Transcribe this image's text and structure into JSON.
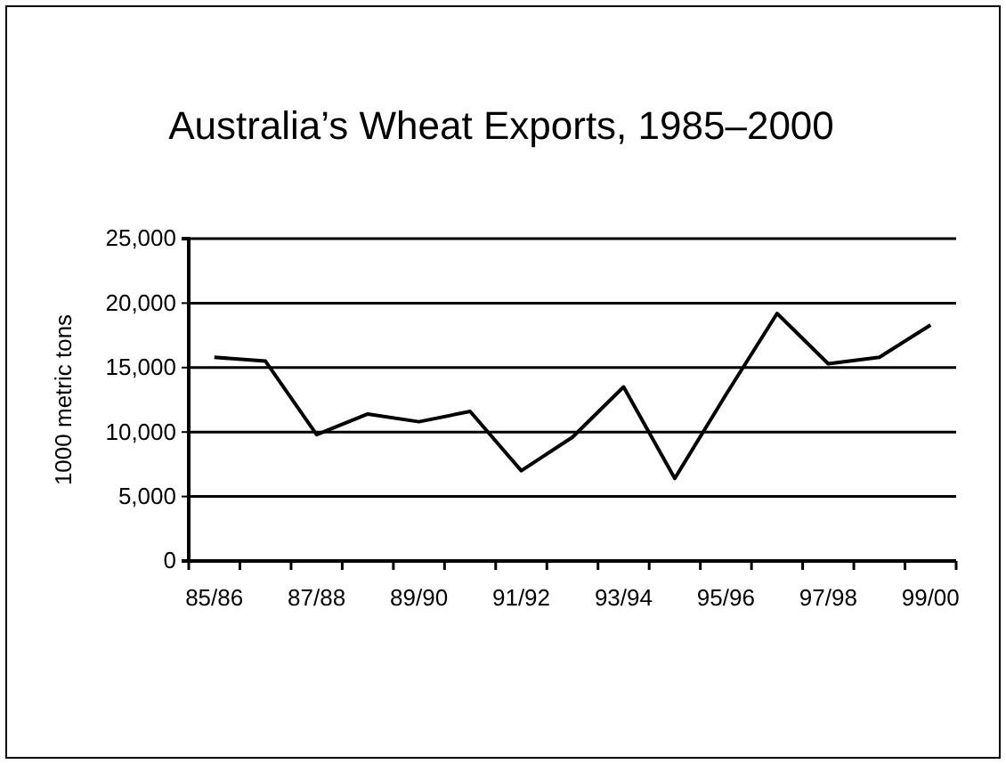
{
  "chart_data": {
    "type": "line",
    "title": "Australia’s Wheat Exports, 1985–2000",
    "ylabel": "1000 metric tons",
    "categories": [
      "85/86",
      null,
      "87/88",
      null,
      "89/90",
      null,
      "91/92",
      null,
      "93/94",
      null,
      "95/96",
      null,
      "97/98",
      null,
      "99/00"
    ],
    "series": [
      {
        "color": "#000000",
        "values": [
          15800,
          15500,
          9800,
          11400,
          10800,
          11600,
          7000,
          9600,
          13500,
          6400,
          12900,
          19200,
          15300,
          15800,
          18300
        ]
      }
    ],
    "ylim": [
      0,
      25000
    ],
    "yticks": [
      {
        "value": 0,
        "label": "0"
      },
      {
        "value": 5000,
        "label": "5,000"
      },
      {
        "value": 10000,
        "label": "10,000"
      },
      {
        "value": 15000,
        "label": "15,000"
      },
      {
        "value": 20000,
        "label": "20,000"
      },
      {
        "value": 25000,
        "label": "25,000"
      }
    ],
    "grid": "y",
    "marker": "none",
    "line_style": "solid"
  }
}
